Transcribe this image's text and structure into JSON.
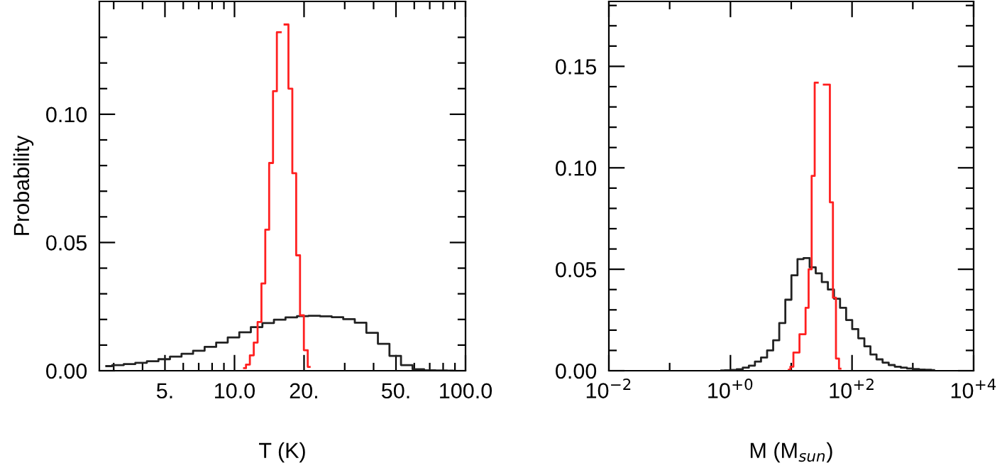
{
  "chart_data": [
    {
      "type": "step",
      "xlabel": "T (K)",
      "ylabel": "Probability",
      "log": "x",
      "xlim": [
        2.6,
        100
      ],
      "ylim": [
        0,
        0.144
      ],
      "xticks": [
        {
          "value": 3,
          "label": null
        },
        {
          "value": 4,
          "label": null
        },
        {
          "value": 5,
          "label": "5."
        },
        {
          "value": 6,
          "label": null
        },
        {
          "value": 7,
          "label": null
        },
        {
          "value": 8,
          "label": null
        },
        {
          "value": 9,
          "label": null
        },
        {
          "value": 10,
          "label": "10.0"
        },
        {
          "value": 20,
          "label": "20."
        },
        {
          "value": 30,
          "label": null
        },
        {
          "value": 40,
          "label": null
        },
        {
          "value": 50,
          "label": "50."
        },
        {
          "value": 60,
          "label": null
        },
        {
          "value": 70,
          "label": null
        },
        {
          "value": 80,
          "label": null
        },
        {
          "value": 90,
          "label": null
        },
        {
          "value": 100,
          "label": "100.0"
        }
      ],
      "yticks": [
        {
          "value": 0,
          "label": "0.00"
        },
        {
          "value": 0.01,
          "label": null
        },
        {
          "value": 0.02,
          "label": null
        },
        {
          "value": 0.03,
          "label": null
        },
        {
          "value": 0.04,
          "label": null
        },
        {
          "value": 0.05,
          "label": "0.05"
        },
        {
          "value": 0.06,
          "label": null
        },
        {
          "value": 0.07,
          "label": null
        },
        {
          "value": 0.08,
          "label": null
        },
        {
          "value": 0.09,
          "label": null
        },
        {
          "value": 0.1,
          "label": "0.10"
        },
        {
          "value": 0.11,
          "label": null
        },
        {
          "value": 0.12,
          "label": null
        },
        {
          "value": 0.13,
          "label": null
        }
      ],
      "series": [
        {
          "color": "#222222",
          "x": [
            2.786,
            3.126,
            3.508,
            3.936,
            4.416,
            4.955,
            5.559,
            6.237,
            6.998,
            7.852,
            8.81,
            9.886,
            11.09,
            12.45,
            13.96,
            15.67,
            17.58,
            19.72,
            22.13,
            24.83,
            27.86,
            31.26,
            35.08,
            39.36,
            44.16,
            49.55,
            55.59,
            62.37,
            69.98,
            78.52,
            88.1
          ],
          "values": [
            0.0018,
            0.0022,
            0.0026,
            0.0031,
            0.0037,
            0.0045,
            0.0055,
            0.0066,
            0.0078,
            0.0093,
            0.011,
            0.013,
            0.015,
            0.017,
            0.0186,
            0.0199,
            0.0208,
            0.0213,
            0.0214,
            0.0212,
            0.0209,
            0.0201,
            0.0187,
            0.0148,
            0.0105,
            0.0058,
            0.0022,
            0.0006,
            0.0002,
            0.0001,
            0.0
          ]
        },
        {
          "color": "#ff2020",
          "x": [
            11.0,
            11.43,
            11.88,
            12.35,
            12.83,
            13.33,
            13.85,
            14.4,
            14.96,
            15.55,
            16.16,
            16.79,
            17.45,
            18.14,
            18.85,
            19.58,
            20.35,
            21.15
          ],
          "values": [
            0.001,
            0.0024,
            0.006,
            0.011,
            0.019,
            0.034,
            0.055,
            0.081,
            0.109,
            0.132,
            null,
            0.135,
            0.11,
            0.077,
            0.045,
            0.0216,
            0.008,
            0.0015
          ]
        }
      ]
    },
    {
      "type": "step",
      "xlabel": "M (M$_{sun}$)",
      "log": "x",
      "xlim": [
        0.01,
        10000
      ],
      "ylim": [
        0,
        0.182
      ],
      "xticks": [
        {
          "value": 0.01,
          "label": "10$^{−2}$"
        },
        {
          "value": 0.1,
          "label": null
        },
        {
          "value": 1,
          "label": "10$^{+0}$"
        },
        {
          "value": 10,
          "label": null
        },
        {
          "value": 100,
          "label": "10$^{+2}$"
        },
        {
          "value": 1000,
          "label": null
        },
        {
          "value": 10000,
          "label": "10$^{+4}$"
        }
      ],
      "yticks": [
        {
          "value": 0,
          "label": "0.00"
        },
        {
          "value": 0.01,
          "label": null
        },
        {
          "value": 0.02,
          "label": null
        },
        {
          "value": 0.03,
          "label": null
        },
        {
          "value": 0.04,
          "label": null
        },
        {
          "value": 0.05,
          "label": "0.05"
        },
        {
          "value": 0.06,
          "label": null
        },
        {
          "value": 0.07,
          "label": null
        },
        {
          "value": 0.08,
          "label": null
        },
        {
          "value": 0.09,
          "label": null
        },
        {
          "value": 0.1,
          "label": "0.10"
        },
        {
          "value": 0.11,
          "label": null
        },
        {
          "value": 0.12,
          "label": null
        },
        {
          "value": 0.13,
          "label": null
        },
        {
          "value": 0.14,
          "label": null
        },
        {
          "value": 0.15,
          "label": "0.15"
        },
        {
          "value": 0.16,
          "label": null
        },
        {
          "value": 0.17,
          "label": null
        },
        {
          "value": 0.18,
          "label": null
        }
      ],
      "series": [
        {
          "color": "#222222",
          "x": [
            0.708,
            0.891,
            1.122,
            1.413,
            1.778,
            2.239,
            2.818,
            3.548,
            4.467,
            5.623,
            7.079,
            8.913,
            11.22,
            14.13,
            17.78,
            22.39,
            28.18,
            35.48,
            44.67,
            56.23,
            70.79,
            89.13,
            112.2,
            141.3,
            177.8,
            223.9,
            281.8,
            354.8,
            446.7,
            562.3,
            707.9,
            891.3,
            1122,
            1413,
            1778,
            2239
          ],
          "values": [
            0.0001,
            0.0002,
            0.0004,
            0.0007,
            0.0015,
            0.0025,
            0.0045,
            0.0065,
            0.01,
            0.015,
            0.0235,
            0.035,
            0.047,
            0.055,
            0.0555,
            0.051,
            0.048,
            0.0437,
            0.04,
            0.0355,
            0.031,
            0.025,
            0.0205,
            0.016,
            0.012,
            0.008,
            0.0056,
            0.004,
            0.0028,
            0.002,
            0.0015,
            0.0011,
            0.0008,
            0.0006,
            0.0005,
            0.0003
          ]
        },
        {
          "color": "#ff2020",
          "x": [
            9.12,
            10.23,
            11.48,
            12.88,
            14.45,
            16.22,
            18.2,
            20.42,
            22.91,
            25.7,
            28.84,
            32.36,
            36.31,
            40.74,
            45.71,
            51.29,
            57.54,
            64.57
          ],
          "values": [
            0.0005,
            0.002,
            0.009,
            0.009,
            0.018,
            0.018,
            0.031,
            0.05,
            0.096,
            0.142,
            null,
            null,
            0.141,
            0.141,
            0.083,
            0.036,
            0.006,
            0.001
          ]
        }
      ]
    }
  ]
}
